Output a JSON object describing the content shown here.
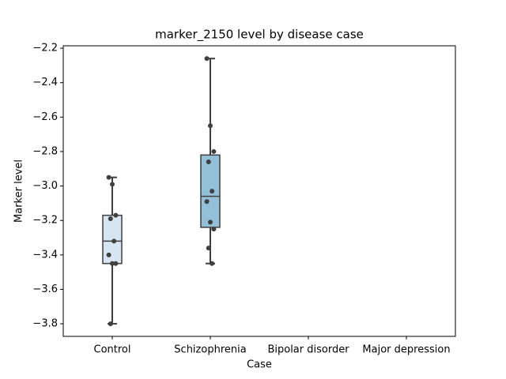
{
  "chart_data": {
    "type": "box",
    "title": "marker_2150 level by disease case",
    "x_label": "Case",
    "y_label": "Marker level",
    "categories": [
      "Control",
      "Schizophrenia",
      "Bipolar disorder",
      "Major depression"
    ],
    "colors": [
      "#d6e5f1",
      "#93bfd8",
      null,
      null
    ],
    "boxes": [
      {
        "low": -3.8,
        "q1": -3.45,
        "median": -3.32,
        "q3": -3.17,
        "high": -2.95
      },
      {
        "low": -3.45,
        "q1": -3.24,
        "median": -3.06,
        "q3": -2.82,
        "high": -2.26
      },
      null,
      null
    ],
    "points": [
      [
        -2.95,
        -2.99,
        -3.17,
        -3.19,
        -3.32,
        -3.4,
        -3.45,
        -3.45,
        -3.8
      ],
      [
        -2.26,
        -2.65,
        -2.8,
        -2.86,
        -3.03,
        -3.09,
        -3.21,
        -3.25,
        -3.36,
        -3.45
      ],
      [],
      []
    ],
    "ylim": [
      -3.873,
      -2.186
    ],
    "yticks": [
      {
        "value": -2.2,
        "label": "−2.2"
      },
      {
        "value": -2.4,
        "label": "−2.4"
      },
      {
        "value": -2.6,
        "label": "−2.6"
      },
      {
        "value": -2.8,
        "label": "−2.8"
      },
      {
        "value": -3.0,
        "label": "−3.0"
      },
      {
        "value": -3.2,
        "label": "−3.2"
      },
      {
        "value": -3.4,
        "label": "−3.4"
      },
      {
        "value": -3.6,
        "label": "−3.6"
      },
      {
        "value": -3.8,
        "label": "−3.8"
      }
    ],
    "grid": false
  }
}
